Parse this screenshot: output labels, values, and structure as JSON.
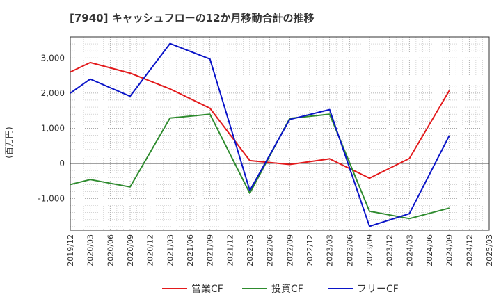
{
  "chart_data": {
    "type": "line",
    "title": "[7940]  キャッシュフローの12か月移動合計の推移",
    "ylabel": "(百万円)",
    "xlabel": "",
    "ylim": [
      -1900,
      3600
    ],
    "yticks": [
      -1000,
      0,
      1000,
      2000,
      3000
    ],
    "ytick_labels": [
      "-1,000",
      "0",
      "1,000",
      "2,000",
      "3,000"
    ],
    "categories": [
      "2019/12",
      "2020/03",
      "2020/06",
      "2020/09",
      "2020/12",
      "2021/03",
      "2021/06",
      "2021/09",
      "2021/12",
      "2022/03",
      "2022/06",
      "2022/09",
      "2022/12",
      "2023/03",
      "2023/06",
      "2023/09",
      "2023/12",
      "2024/03",
      "2024/06",
      "2024/09",
      "2024/12",
      "2025/03"
    ],
    "grid": true,
    "legend_position": "bottom",
    "series": [
      {
        "name": "営業CF",
        "color": "#e31a1c",
        "values": [
          2600,
          2870,
          null,
          2570,
          null,
          2120,
          null,
          1570,
          null,
          80,
          null,
          -30,
          null,
          130,
          null,
          -420,
          null,
          140,
          null,
          2070,
          null,
          null
        ]
      },
      {
        "name": "投資CF",
        "color": "#2e8b2e",
        "values": [
          -600,
          -460,
          null,
          -670,
          null,
          1290,
          null,
          1400,
          null,
          -850,
          null,
          1280,
          null,
          1400,
          null,
          -1360,
          null,
          -1570,
          null,
          -1270,
          null,
          null
        ]
      },
      {
        "name": "フリーCF",
        "color": "#0a14c8",
        "values": [
          2000,
          2400,
          null,
          1910,
          null,
          3410,
          null,
          2970,
          null,
          -770,
          null,
          1250,
          null,
          1530,
          null,
          -1790,
          null,
          -1430,
          null,
          790,
          null,
          null
        ]
      }
    ]
  }
}
